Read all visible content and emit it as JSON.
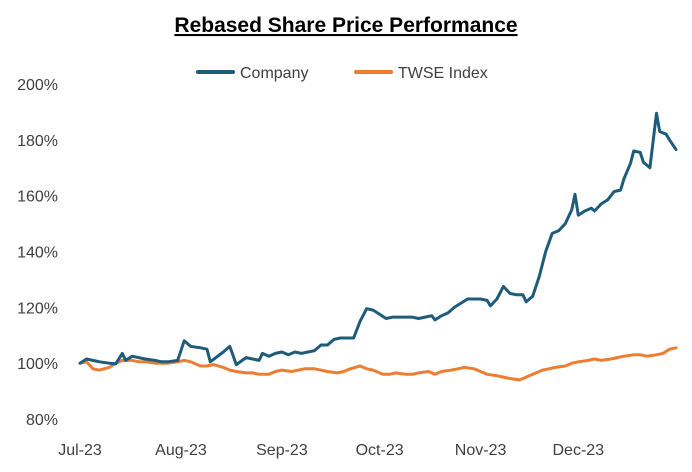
{
  "chart_data": {
    "type": "line",
    "title": "Rebased Share Price Performance",
    "xlabel": "",
    "ylabel": "",
    "ylim": [
      80,
      200
    ],
    "y_ticks": [
      "80%",
      "100%",
      "120%",
      "140%",
      "160%",
      "180%",
      "200%"
    ],
    "y_tick_values": [
      80,
      100,
      120,
      140,
      160,
      180,
      200
    ],
    "x_ticks": [
      "Jul-23",
      "Aug-23",
      "Sep-23",
      "Oct-23",
      "Nov-23",
      "Dec-23"
    ],
    "x_tick_values": [
      "2023-07-01",
      "2023-08-01",
      "2023-09-01",
      "2023-10-01",
      "2023-11-01",
      "2023-12-01"
    ],
    "xlim": [
      "2023-07-01",
      "2023-12-31"
    ],
    "grid": false,
    "legend_position": "top-center",
    "series": [
      {
        "name": "Company",
        "color": "#1F5C7A",
        "points": [
          [
            "2023-07-01",
            100
          ],
          [
            "2023-07-03",
            101.5
          ],
          [
            "2023-07-05",
            101
          ],
          [
            "2023-07-07",
            100.5
          ],
          [
            "2023-07-10",
            100
          ],
          [
            "2023-07-12",
            99.8
          ],
          [
            "2023-07-14",
            103.5
          ],
          [
            "2023-07-15",
            101
          ],
          [
            "2023-07-17",
            102.5
          ],
          [
            "2023-07-19",
            102
          ],
          [
            "2023-07-21",
            101.5
          ],
          [
            "2023-07-24",
            101
          ],
          [
            "2023-07-26",
            100.5
          ],
          [
            "2023-07-28",
            100.5
          ],
          [
            "2023-07-31",
            101
          ],
          [
            "2023-08-02",
            108
          ],
          [
            "2023-08-04",
            106
          ],
          [
            "2023-08-07",
            105.5
          ],
          [
            "2023-08-09",
            105
          ],
          [
            "2023-08-10",
            100.5
          ],
          [
            "2023-08-14",
            104
          ],
          [
            "2023-08-16",
            106
          ],
          [
            "2023-08-18",
            99.5
          ],
          [
            "2023-08-21",
            102
          ],
          [
            "2023-08-23",
            101.5
          ],
          [
            "2023-08-25",
            101
          ],
          [
            "2023-08-26",
            103.5
          ],
          [
            "2023-08-28",
            102.5
          ],
          [
            "2023-08-30",
            103.5
          ],
          [
            "2023-09-01",
            104
          ],
          [
            "2023-09-03",
            103
          ],
          [
            "2023-09-05",
            104
          ],
          [
            "2023-09-07",
            103.5
          ],
          [
            "2023-09-09",
            104
          ],
          [
            "2023-09-11",
            104.5
          ],
          [
            "2023-09-13",
            106.5
          ],
          [
            "2023-09-15",
            106.5
          ],
          [
            "2023-09-17",
            108.5
          ],
          [
            "2023-09-19",
            109
          ],
          [
            "2023-09-21",
            109
          ],
          [
            "2023-09-23",
            109
          ],
          [
            "2023-09-25",
            115
          ],
          [
            "2023-09-27",
            119.5
          ],
          [
            "2023-09-29",
            119
          ],
          [
            "2023-10-01",
            117.5
          ],
          [
            "2023-10-03",
            116
          ],
          [
            "2023-10-05",
            116.5
          ],
          [
            "2023-10-07",
            116.5
          ],
          [
            "2023-10-09",
            116.5
          ],
          [
            "2023-10-11",
            116.5
          ],
          [
            "2023-10-13",
            116
          ],
          [
            "2023-10-15",
            116.5
          ],
          [
            "2023-10-17",
            117
          ],
          [
            "2023-10-18",
            115.5
          ],
          [
            "2023-10-20",
            117
          ],
          [
            "2023-10-22",
            118
          ],
          [
            "2023-10-24",
            120
          ],
          [
            "2023-10-26",
            121.5
          ],
          [
            "2023-10-28",
            123
          ],
          [
            "2023-10-30",
            123
          ],
          [
            "2023-11-01",
            123
          ],
          [
            "2023-11-03",
            122.5
          ],
          [
            "2023-11-04",
            120.5
          ],
          [
            "2023-11-06",
            123
          ],
          [
            "2023-11-08",
            127.5
          ],
          [
            "2023-11-10",
            125
          ],
          [
            "2023-11-12",
            124.5
          ],
          [
            "2023-11-14",
            124.5
          ],
          [
            "2023-11-15",
            122
          ],
          [
            "2023-11-17",
            124
          ],
          [
            "2023-11-19",
            131
          ],
          [
            "2023-11-21",
            140
          ],
          [
            "2023-11-23",
            146.5
          ],
          [
            "2023-11-25",
            147.5
          ],
          [
            "2023-11-27",
            150
          ],
          [
            "2023-11-29",
            155
          ],
          [
            "2023-11-30",
            160.5
          ],
          [
            "2023-12-01",
            153
          ],
          [
            "2023-12-03",
            154.5
          ],
          [
            "2023-12-05",
            155.5
          ],
          [
            "2023-12-06",
            154.5
          ],
          [
            "2023-12-08",
            157
          ],
          [
            "2023-12-10",
            158.5
          ],
          [
            "2023-12-12",
            161.5
          ],
          [
            "2023-12-14",
            162
          ],
          [
            "2023-12-15",
            166
          ],
          [
            "2023-12-17",
            171.5
          ],
          [
            "2023-12-18",
            176
          ],
          [
            "2023-12-20",
            175.5
          ],
          [
            "2023-12-21",
            172
          ],
          [
            "2023-12-23",
            170
          ],
          [
            "2023-12-25",
            189.5
          ],
          [
            "2023-12-26",
            183
          ],
          [
            "2023-12-28",
            182
          ],
          [
            "2023-12-29",
            180
          ],
          [
            "2023-12-31",
            176.5
          ]
        ]
      },
      {
        "name": "TWSE Index",
        "color": "#ED7D31",
        "points": [
          [
            "2023-07-01",
            100
          ],
          [
            "2023-07-03",
            100.5
          ],
          [
            "2023-07-05",
            98
          ],
          [
            "2023-07-07",
            97.5
          ],
          [
            "2023-07-10",
            98.5
          ],
          [
            "2023-07-12",
            100
          ],
          [
            "2023-07-14",
            101
          ],
          [
            "2023-07-17",
            101
          ],
          [
            "2023-07-19",
            100.5
          ],
          [
            "2023-07-21",
            100.5
          ],
          [
            "2023-07-24",
            100
          ],
          [
            "2023-07-26",
            100
          ],
          [
            "2023-07-28",
            100
          ],
          [
            "2023-07-31",
            100.5
          ],
          [
            "2023-08-02",
            101
          ],
          [
            "2023-08-04",
            100.5
          ],
          [
            "2023-08-07",
            99
          ],
          [
            "2023-08-09",
            99
          ],
          [
            "2023-08-11",
            99.5
          ],
          [
            "2023-08-14",
            98.5
          ],
          [
            "2023-08-16",
            97.5
          ],
          [
            "2023-08-18",
            97
          ],
          [
            "2023-08-21",
            96.5
          ],
          [
            "2023-08-23",
            96.5
          ],
          [
            "2023-08-25",
            96
          ],
          [
            "2023-08-28",
            96
          ],
          [
            "2023-08-30",
            97
          ],
          [
            "2023-09-01",
            97.5
          ],
          [
            "2023-09-04",
            97
          ],
          [
            "2023-09-06",
            97.5
          ],
          [
            "2023-09-08",
            98
          ],
          [
            "2023-09-11",
            98
          ],
          [
            "2023-09-13",
            97.5
          ],
          [
            "2023-09-15",
            97
          ],
          [
            "2023-09-18",
            96.5
          ],
          [
            "2023-09-20",
            97
          ],
          [
            "2023-09-22",
            98
          ],
          [
            "2023-09-25",
            99
          ],
          [
            "2023-09-27",
            98
          ],
          [
            "2023-09-29",
            97.5
          ],
          [
            "2023-10-02",
            96
          ],
          [
            "2023-10-04",
            96
          ],
          [
            "2023-10-06",
            96.5
          ],
          [
            "2023-10-09",
            96
          ],
          [
            "2023-10-11",
            96
          ],
          [
            "2023-10-13",
            96.5
          ],
          [
            "2023-10-16",
            97
          ],
          [
            "2023-10-18",
            96
          ],
          [
            "2023-10-20",
            97
          ],
          [
            "2023-10-23",
            97.5
          ],
          [
            "2023-10-25",
            98
          ],
          [
            "2023-10-27",
            98.5
          ],
          [
            "2023-10-30",
            98
          ],
          [
            "2023-11-01",
            97
          ],
          [
            "2023-11-03",
            96
          ],
          [
            "2023-11-06",
            95.5
          ],
          [
            "2023-11-08",
            95
          ],
          [
            "2023-11-10",
            94.5
          ],
          [
            "2023-11-13",
            94
          ],
          [
            "2023-11-15",
            95
          ],
          [
            "2023-11-17",
            96
          ],
          [
            "2023-11-20",
            97.5
          ],
          [
            "2023-11-22",
            98
          ],
          [
            "2023-11-24",
            98.5
          ],
          [
            "2023-11-27",
            99
          ],
          [
            "2023-11-29",
            100
          ],
          [
            "2023-12-01",
            100.5
          ],
          [
            "2023-12-04",
            101
          ],
          [
            "2023-12-06",
            101.5
          ],
          [
            "2023-12-08",
            101
          ],
          [
            "2023-12-11",
            101.5
          ],
          [
            "2023-12-13",
            102
          ],
          [
            "2023-12-15",
            102.5
          ],
          [
            "2023-12-18",
            103
          ],
          [
            "2023-12-20",
            103
          ],
          [
            "2023-12-22",
            102.5
          ],
          [
            "2023-12-25",
            103
          ],
          [
            "2023-12-27",
            103.5
          ],
          [
            "2023-12-29",
            105
          ],
          [
            "2023-12-31",
            105.5
          ]
        ]
      }
    ]
  }
}
